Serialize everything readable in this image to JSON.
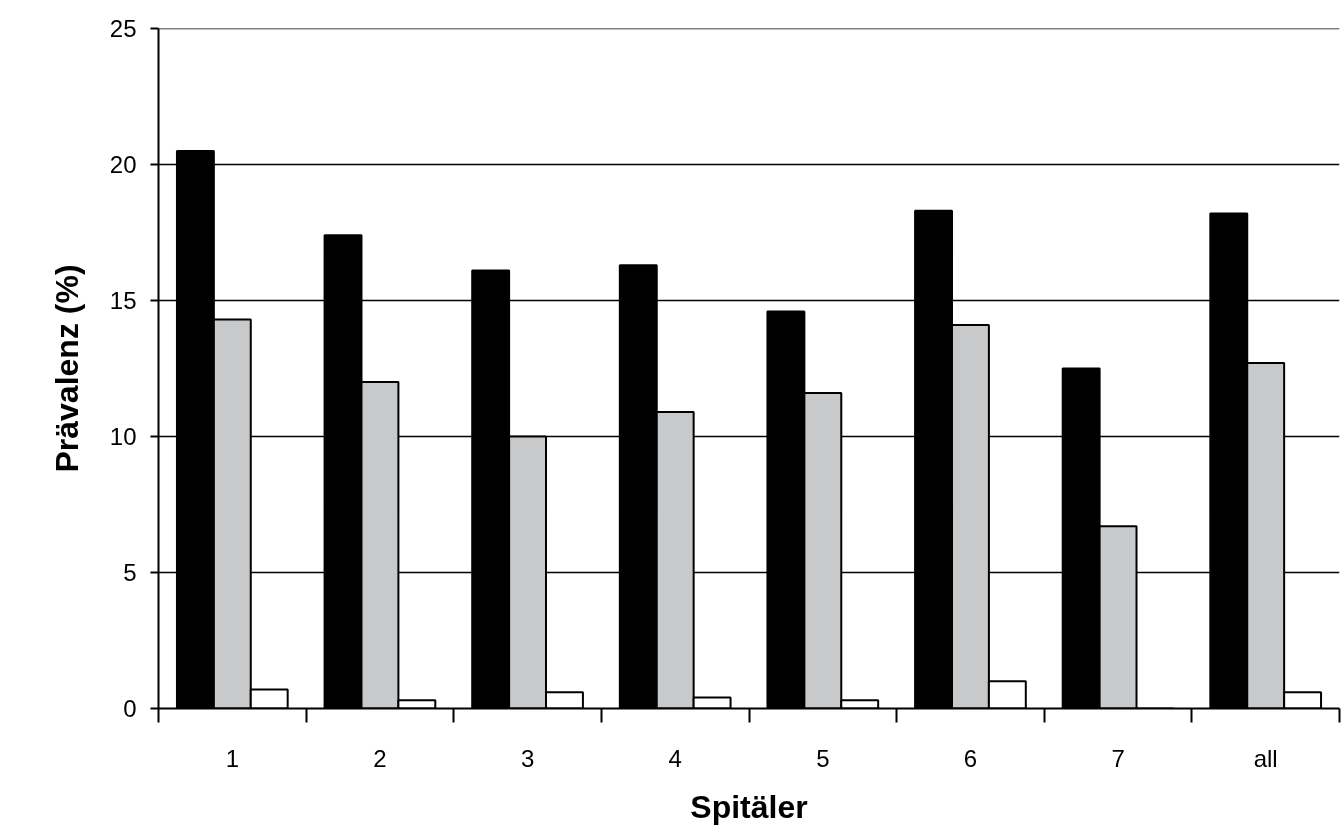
{
  "chart_data": {
    "type": "bar",
    "xlabel": "Spitäler",
    "ylabel": "Prävalenz (%)",
    "categories": [
      "1",
      "2",
      "3",
      "4",
      "5",
      "6",
      "7",
      "all"
    ],
    "series": [
      {
        "color": "#000000",
        "values": [
          20.5,
          17.4,
          16.1,
          16.3,
          14.6,
          18.3,
          12.5,
          18.2
        ]
      },
      {
        "color": "#c8c9cb",
        "values": [
          14.3,
          12.0,
          10.0,
          10.9,
          11.6,
          14.1,
          6.7,
          12.7
        ]
      },
      {
        "color": "#ffffff",
        "values": [
          0.7,
          0.3,
          0.6,
          0.4,
          0.3,
          1.0,
          0,
          0.6
        ]
      }
    ],
    "ylim": [
      0,
      25
    ],
    "yticks": [
      0,
      5,
      10,
      15,
      20,
      25
    ],
    "grid": "y"
  }
}
